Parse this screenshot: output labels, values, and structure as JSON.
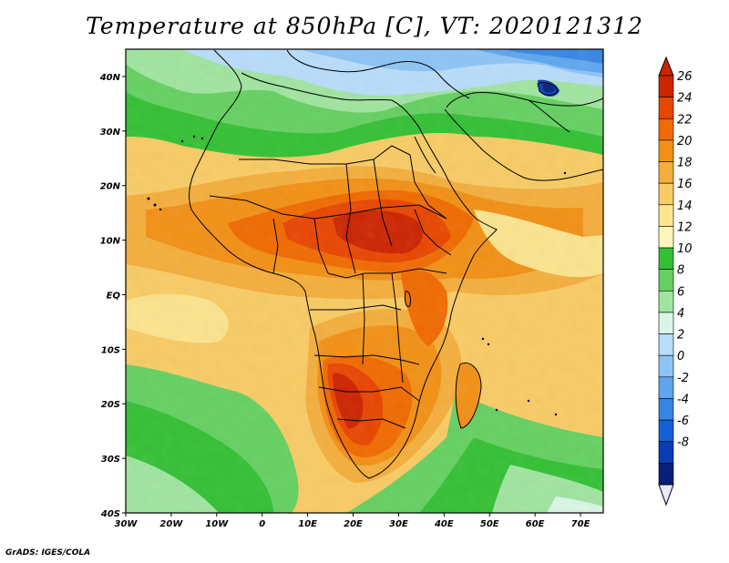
{
  "title": "Temperature at 850hPa [C], VT: 2020121312",
  "credit": "GrADS: IGES/COLA",
  "map": {
    "variable": "Temperature",
    "level": "850hPa",
    "units": "C",
    "valid_time": "2020121312",
    "lon_range": [
      -30,
      75
    ],
    "lat_range": [
      -40,
      45
    ],
    "lon_ticks": [
      {
        "value": -30,
        "label": "30W"
      },
      {
        "value": -20,
        "label": "20W"
      },
      {
        "value": -10,
        "label": "10W"
      },
      {
        "value": 0,
        "label": "0"
      },
      {
        "value": 10,
        "label": "10E"
      },
      {
        "value": 20,
        "label": "20E"
      },
      {
        "value": 30,
        "label": "30E"
      },
      {
        "value": 40,
        "label": "40E"
      },
      {
        "value": 50,
        "label": "50E"
      },
      {
        "value": 60,
        "label": "60E"
      },
      {
        "value": 70,
        "label": "70E"
      }
    ],
    "lat_ticks": [
      {
        "value": 40,
        "label": "40N"
      },
      {
        "value": 30,
        "label": "30N"
      },
      {
        "value": 20,
        "label": "20N"
      },
      {
        "value": 10,
        "label": "10N"
      },
      {
        "value": 0,
        "label": "EQ"
      },
      {
        "value": -10,
        "label": "10S"
      },
      {
        "value": -20,
        "label": "20S"
      },
      {
        "value": -30,
        "label": "30S"
      },
      {
        "value": -40,
        "label": "40S"
      }
    ]
  },
  "colorbar": {
    "labels": [
      "26",
      "24",
      "22",
      "20",
      "18",
      "16",
      "14",
      "12",
      "10",
      "8",
      "6",
      "4",
      "2",
      "0",
      "-2",
      "-4",
      "-6",
      "-8"
    ],
    "colors": [
      "#cc2400",
      "#e84500",
      "#f06a00",
      "#f29014",
      "#f4ae3c",
      "#f8cb64",
      "#fbe48e",
      "#fdf5ba",
      "#34c034",
      "#64d060",
      "#a0e4a0",
      "#d8f6e6",
      "#b8dcfa",
      "#8cc4f6",
      "#5ea6ee",
      "#3586e4",
      "#1560d8",
      "#0a3cb4",
      "#08207c"
    ],
    "top_color": "#cc2400",
    "bottom_color": "#e8e8ff"
  }
}
